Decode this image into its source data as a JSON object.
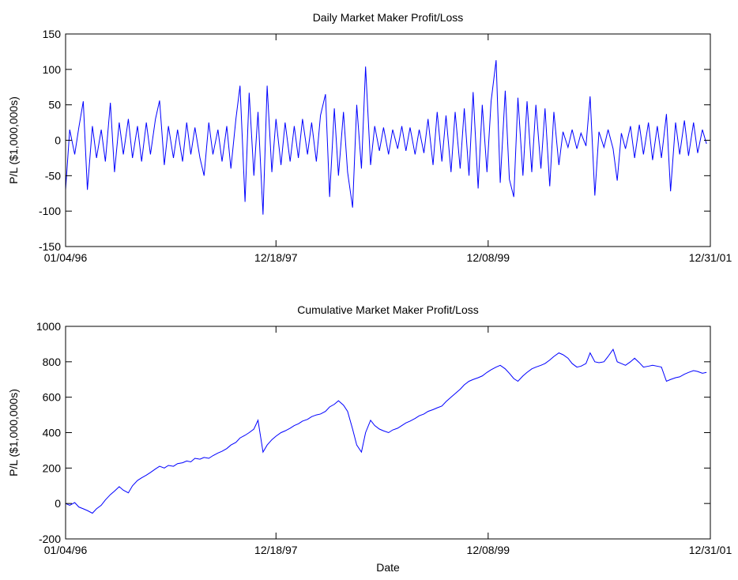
{
  "chart_data": [
    {
      "type": "line",
      "title": "Daily Market Maker Profit/Loss",
      "y_label": "P/L ($1,000,000s)",
      "color": "#0000ff",
      "x": [
        "01/04/96",
        "01/18/96",
        "02/04/96",
        "02/18/96",
        "03/04/96",
        "03/18/96",
        "04/04/96",
        "04/18/96",
        "05/04/96",
        "05/18/96",
        "06/04/96",
        "06/18/96",
        "07/04/96",
        "07/18/96",
        "08/04/96",
        "08/18/96",
        "09/04/96",
        "09/18/96",
        "10/04/96",
        "10/18/96",
        "11/04/96",
        "11/18/96",
        "12/04/96",
        "12/18/96",
        "01/04/97",
        "01/18/97",
        "02/04/97",
        "02/18/97",
        "03/04/97",
        "03/18/97",
        "04/04/97",
        "04/18/97",
        "05/04/97",
        "05/18/97",
        "06/04/97",
        "06/18/97",
        "07/04/97",
        "07/18/97",
        "08/04/97",
        "08/18/97",
        "09/04/97",
        "09/18/97",
        "10/04/97",
        "10/18/97",
        "11/04/97",
        "11/18/97",
        "12/04/97",
        "12/18/97",
        "01/04/98",
        "01/18/98",
        "02/04/98",
        "02/18/98",
        "03/04/98",
        "03/18/98",
        "04/04/98",
        "04/18/98",
        "05/04/98",
        "05/18/98",
        "06/04/98",
        "06/18/98",
        "07/04/98",
        "07/18/98",
        "08/04/98",
        "08/18/98",
        "09/04/98",
        "09/18/98",
        "10/04/98",
        "10/18/98",
        "11/04/98",
        "11/18/98",
        "12/04/98",
        "12/18/98",
        "01/04/99",
        "01/18/99",
        "02/04/99",
        "02/18/99",
        "03/04/99",
        "03/18/99",
        "04/04/99",
        "04/18/99",
        "05/04/99",
        "05/18/99",
        "06/04/99",
        "06/18/99",
        "07/04/99",
        "07/18/99",
        "08/04/99",
        "08/18/99",
        "09/04/99",
        "09/18/99",
        "10/04/99",
        "10/18/99",
        "11/04/99",
        "11/18/99",
        "12/04/99",
        "12/18/99",
        "01/04/00",
        "01/18/00",
        "02/04/00",
        "02/18/00",
        "03/04/00",
        "03/18/00",
        "04/04/00",
        "04/18/00",
        "05/04/00",
        "05/18/00",
        "06/04/00",
        "06/18/00",
        "07/04/00",
        "07/18/00",
        "08/04/00",
        "08/18/00",
        "09/04/00",
        "09/18/00",
        "10/04/00",
        "10/18/00",
        "11/04/00",
        "11/18/00",
        "12/04/00",
        "12/18/00",
        "01/04/01",
        "01/18/01",
        "02/04/01",
        "02/18/01",
        "03/04/01",
        "03/18/01",
        "04/04/01",
        "04/18/01",
        "05/04/01",
        "05/18/01",
        "06/04/01",
        "06/18/01",
        "07/04/01",
        "07/18/01",
        "08/04/01",
        "08/18/01",
        "09/04/01",
        "09/18/01",
        "10/04/01",
        "10/18/01",
        "11/04/01",
        "11/18/01",
        "12/04/01",
        "12/18/01"
      ],
      "values": [
        -70,
        15,
        -20,
        18,
        55,
        -70,
        20,
        -25,
        15,
        -30,
        53,
        -45,
        25,
        -20,
        30,
        -25,
        20,
        -30,
        25,
        -20,
        30,
        56,
        -35,
        20,
        -25,
        15,
        -30,
        25,
        -20,
        18,
        -25,
        -50,
        25,
        -20,
        15,
        -30,
        20,
        -40,
        30,
        77,
        -87,
        67,
        -50,
        40,
        -105,
        77,
        -45,
        30,
        -35,
        25,
        -30,
        20,
        -25,
        30,
        -20,
        25,
        -30,
        35,
        65,
        -80,
        45,
        -50,
        40,
        -45,
        -95,
        50,
        -40,
        104,
        -35,
        20,
        -15,
        18,
        -20,
        15,
        -12,
        20,
        -15,
        18,
        -20,
        15,
        -18,
        30,
        -35,
        40,
        -30,
        35,
        -45,
        40,
        -40,
        45,
        -50,
        68,
        -68,
        50,
        -45,
        55,
        113,
        -60,
        70,
        -55,
        -80,
        60,
        -50,
        55,
        -45,
        50,
        -40,
        45,
        -65,
        40,
        -35,
        12,
        -10,
        15,
        -12,
        10,
        -8,
        62,
        -78,
        12,
        -10,
        15,
        -12,
        -57,
        10,
        -12,
        20,
        -25,
        22,
        -20,
        25,
        -28,
        20,
        -25,
        37,
        -72,
        25,
        -20,
        28,
        -22,
        25,
        -18,
        15,
        -5
      ],
      "xlim": [
        "01/04/96",
        "12/31/01"
      ],
      "xticks": [
        "01/04/96",
        "12/18/97",
        "12/08/99",
        "12/31/01"
      ],
      "ylim": [
        -150,
        150
      ],
      "yticks": [
        -150,
        -100,
        -50,
        0,
        50,
        100,
        150
      ]
    },
    {
      "type": "line",
      "title": "Cumulative Market Maker Profit/Loss",
      "y_label": "P/L ($1,000,000s)",
      "x_label": "Date",
      "color": "#0000ff",
      "x": [
        "01/04/96",
        "01/18/96",
        "02/04/96",
        "02/18/96",
        "03/04/96",
        "03/18/96",
        "04/04/96",
        "04/18/96",
        "05/04/96",
        "05/18/96",
        "06/04/96",
        "06/18/96",
        "07/04/96",
        "07/18/96",
        "08/04/96",
        "08/18/96",
        "09/04/96",
        "09/18/96",
        "10/04/96",
        "10/18/96",
        "11/04/96",
        "11/18/96",
        "12/04/96",
        "12/18/96",
        "01/04/97",
        "01/18/97",
        "02/04/97",
        "02/18/97",
        "03/04/97",
        "03/18/97",
        "04/04/97",
        "04/18/97",
        "05/04/97",
        "05/18/97",
        "06/04/97",
        "06/18/97",
        "07/04/97",
        "07/18/97",
        "08/04/97",
        "08/18/97",
        "09/04/97",
        "09/18/97",
        "10/04/97",
        "10/18/97",
        "11/04/97",
        "11/18/97",
        "12/04/97",
        "12/18/97",
        "01/04/98",
        "01/18/98",
        "02/04/98",
        "02/18/98",
        "03/04/98",
        "03/18/98",
        "04/04/98",
        "04/18/98",
        "05/04/98",
        "05/18/98",
        "06/04/98",
        "06/18/98",
        "07/04/98",
        "07/18/98",
        "08/04/98",
        "08/18/98",
        "09/04/98",
        "09/18/98",
        "10/04/98",
        "10/18/98",
        "11/04/98",
        "11/18/98",
        "12/04/98",
        "12/18/98",
        "01/04/99",
        "01/18/99",
        "02/04/99",
        "02/18/99",
        "03/04/99",
        "03/18/99",
        "04/04/99",
        "04/18/99",
        "05/04/99",
        "05/18/99",
        "06/04/99",
        "06/18/99",
        "07/04/99",
        "07/18/99",
        "08/04/99",
        "08/18/99",
        "09/04/99",
        "09/18/99",
        "10/04/99",
        "10/18/99",
        "11/04/99",
        "11/18/99",
        "12/04/99",
        "12/18/99",
        "01/04/00",
        "01/18/00",
        "02/04/00",
        "02/18/00",
        "03/04/00",
        "03/18/00",
        "04/04/00",
        "04/18/00",
        "05/04/00",
        "05/18/00",
        "06/04/00",
        "06/18/00",
        "07/04/00",
        "07/18/00",
        "08/04/00",
        "08/18/00",
        "09/04/00",
        "09/18/00",
        "10/04/00",
        "10/18/00",
        "11/04/00",
        "11/18/00",
        "12/04/00",
        "12/18/00",
        "01/04/01",
        "01/18/01",
        "02/04/01",
        "02/18/01",
        "03/04/01",
        "03/18/01",
        "04/04/01",
        "04/18/01",
        "05/04/01",
        "05/18/01",
        "06/04/01",
        "06/18/01",
        "07/04/01",
        "07/18/01",
        "08/04/01",
        "08/18/01",
        "09/04/01",
        "09/18/01",
        "10/04/01",
        "10/18/01",
        "11/04/01",
        "11/18/01",
        "12/04/01",
        "12/18/01"
      ],
      "values": [
        0,
        -10,
        5,
        -20,
        -30,
        -40,
        -55,
        -30,
        -10,
        20,
        50,
        70,
        95,
        75,
        60,
        100,
        130,
        145,
        160,
        175,
        195,
        210,
        200,
        215,
        210,
        225,
        230,
        240,
        235,
        255,
        250,
        260,
        255,
        270,
        285,
        295,
        310,
        330,
        345,
        370,
        385,
        400,
        420,
        470,
        290,
        330,
        360,
        380,
        400,
        410,
        425,
        440,
        450,
        465,
        475,
        490,
        500,
        505,
        520,
        545,
        560,
        580,
        555,
        520,
        420,
        330,
        290,
        400,
        470,
        440,
        420,
        410,
        400,
        415,
        425,
        440,
        455,
        465,
        480,
        495,
        505,
        520,
        530,
        540,
        550,
        575,
        600,
        620,
        645,
        670,
        690,
        700,
        710,
        720,
        740,
        755,
        770,
        780,
        760,
        735,
        705,
        690,
        720,
        740,
        760,
        770,
        780,
        790,
        810,
        830,
        850,
        840,
        820,
        790,
        770,
        775,
        790,
        850,
        800,
        795,
        800,
        830,
        870,
        800,
        790,
        780,
        800,
        820,
        795,
        770,
        775,
        780,
        775,
        770,
        690,
        700,
        710,
        715,
        730,
        740,
        750,
        745,
        735,
        740
      ],
      "xlim": [
        "01/04/96",
        "12/31/01"
      ],
      "xticks": [
        "01/04/96",
        "12/18/97",
        "12/08/99",
        "12/31/01"
      ],
      "ylim": [
        -200,
        1000
      ],
      "yticks": [
        -200,
        0,
        200,
        400,
        600,
        800,
        1000
      ]
    }
  ]
}
